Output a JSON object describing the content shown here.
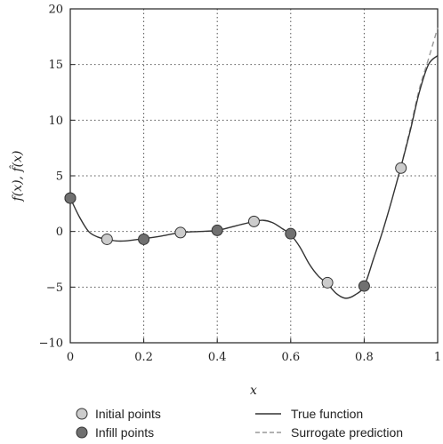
{
  "chart_data": {
    "type": "line",
    "xlabel": "x",
    "ylabel": "f(x), f̂(x)",
    "xlim": [
      0,
      1
    ],
    "ylim": [
      -10,
      20
    ],
    "x_ticks": [
      0,
      0.2,
      0.4,
      0.6,
      0.8,
      1
    ],
    "y_ticks": [
      -10,
      -5,
      0,
      5,
      10,
      15,
      20
    ],
    "x_tick_labels": [
      "0",
      "0.2",
      "0.4",
      "0.6",
      "0.8",
      "1"
    ],
    "y_tick_labels": [
      "−10",
      "−5",
      "0",
      "5",
      "10",
      "15",
      "20"
    ],
    "grid": true,
    "legend_position": "bottom",
    "series": [
      {
        "name": "True function",
        "kind": "line",
        "style": "solid",
        "color": "#333333",
        "x": [
          0,
          0.025,
          0.05,
          0.075,
          0.1,
          0.125,
          0.15,
          0.175,
          0.2,
          0.25,
          0.3,
          0.35,
          0.4,
          0.45,
          0.5,
          0.525,
          0.55,
          0.575,
          0.6,
          0.625,
          0.65,
          0.675,
          0.7,
          0.725,
          0.75,
          0.775,
          0.8,
          0.825,
          0.85,
          0.875,
          0.9,
          0.925,
          0.95,
          0.975,
          1
        ],
        "y": [
          3.0,
          1.3,
          0.0,
          -0.5,
          -0.7,
          -0.85,
          -0.85,
          -0.75,
          -0.65,
          -0.4,
          -0.1,
          0.0,
          0.1,
          0.5,
          0.9,
          1.0,
          0.8,
          0.3,
          -0.3,
          -1.4,
          -2.9,
          -4.0,
          -4.7,
          -5.6,
          -6.0,
          -5.7,
          -4.9,
          -2.5,
          0.0,
          2.8,
          5.8,
          9.0,
          12.5,
          15.0,
          15.8
        ]
      },
      {
        "name": "Surrogate prediction",
        "kind": "line",
        "style": "dashed",
        "color": "#999999",
        "x": [
          0.9,
          0.925,
          0.95,
          0.975,
          1
        ],
        "y": [
          5.8,
          9.2,
          12.8,
          15.5,
          18.3
        ]
      },
      {
        "name": "Initial points",
        "kind": "scatter",
        "color": "#cccccc",
        "x": [
          0,
          0.1,
          0.3,
          0.5,
          0.7,
          0.9
        ],
        "y": [
          3.0,
          -0.7,
          -0.1,
          0.9,
          -4.6,
          5.7
        ]
      },
      {
        "name": "Infill points",
        "kind": "scatter",
        "color": "#707070",
        "x": [
          0,
          0.2,
          0.4,
          0.6,
          0.8
        ],
        "y": [
          3.0,
          -0.7,
          0.1,
          -0.2,
          -4.9
        ]
      }
    ]
  }
}
